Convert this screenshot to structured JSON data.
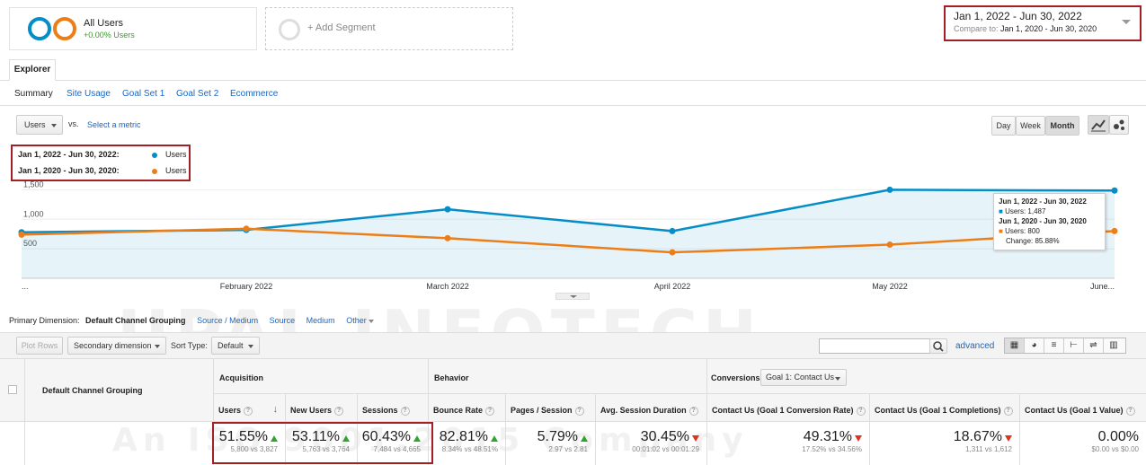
{
  "segments": {
    "all_users_label": "All Users",
    "all_users_change": "+0.00% Users",
    "add_segment_label": "+ Add Segment"
  },
  "date_range": {
    "primary": "Jan 1, 2022 - Jun 30, 2022",
    "compare_label": "Compare to:",
    "compare_range": "Jan 1, 2020 - Jun 30, 2020"
  },
  "tabs": {
    "explorer": "Explorer"
  },
  "subtabs": [
    "Summary",
    "Site Usage",
    "Goal Set 1",
    "Goal Set 2",
    "Ecommerce"
  ],
  "metric_controls": {
    "metric": "Users",
    "vs": "vs.",
    "select_metric": "Select a metric",
    "granularity": [
      "Day",
      "Week",
      "Month"
    ],
    "selected_granularity": "Month"
  },
  "legend": [
    {
      "range": "Jan 1, 2022 - Jun 30, 2022:",
      "metric": "Users",
      "color": "#058dc7"
    },
    {
      "range": "Jan 1, 2020 - Jun 30, 2020:",
      "metric": "Users",
      "color": "#ed7e17"
    }
  ],
  "chart_data": {
    "type": "line",
    "categories": [
      "...",
      "February 2022",
      "March 2022",
      "April 2022",
      "May 2022",
      "June..."
    ],
    "y_ticks": [
      "1,500",
      "1,000",
      "500"
    ],
    "ylim": [
      0,
      1750
    ],
    "grid": true,
    "series": [
      {
        "name": "Jan 1, 2022 - Jun 30, 2022",
        "values": [
          780,
          820,
          1170,
          800,
          1500,
          1487
        ],
        "color": "#058dc7"
      },
      {
        "name": "Jan 1, 2020 - Jun 30, 2020",
        "values": [
          740,
          840,
          680,
          440,
          570,
          800
        ],
        "color": "#ed7e17"
      }
    ],
    "tooltip": {
      "range1": "Jun 1, 2022 - Jun 30, 2022",
      "users1": "Users: 1,487",
      "range2": "Jun 1, 2020 - Jun 30, 2020",
      "users2": "Users: 800",
      "change": "Change: 85.88%"
    }
  },
  "dimension_bar": {
    "label": "Primary Dimension:",
    "selected": "Default Channel Grouping",
    "options": [
      "Source / Medium",
      "Source",
      "Medium",
      "Other"
    ]
  },
  "table_controls": {
    "plot_rows": "Plot Rows",
    "secondary_dimension": "Secondary dimension",
    "sort_type_label": "Sort Type:",
    "sort_type": "Default",
    "advanced": "advanced"
  },
  "table": {
    "dimension_header": "Default Channel Grouping",
    "groups": {
      "acquisition": "Acquisition",
      "behavior": "Behavior",
      "conversions": "Conversions",
      "goal_select": "Goal 1: Contact Us"
    },
    "columns": [
      {
        "header": "Users",
        "pct": "51.55%",
        "vs": "5,800 vs 3,827",
        "trend": "up"
      },
      {
        "header": "New Users",
        "pct": "53.11%",
        "vs": "5,763 vs 3,764",
        "trend": "up"
      },
      {
        "header": "Sessions",
        "pct": "60.43%",
        "vs": "7,484 vs 4,665",
        "trend": "up"
      },
      {
        "header": "Bounce Rate",
        "pct": "82.81%",
        "vs": "8.34% vs 48.51%",
        "trend": "up"
      },
      {
        "header": "Pages / Session",
        "pct": "5.79%",
        "vs": "2.97 vs 2.81",
        "trend": "up"
      },
      {
        "header": "Avg. Session Duration",
        "pct": "30.45%",
        "vs": "00:01:02 vs 00:01:29",
        "trend": "down"
      },
      {
        "header": "Contact Us (Goal 1 Conversion Rate)",
        "pct": "49.31%",
        "vs": "17.52% vs 34.56%",
        "trend": "down"
      },
      {
        "header": "Contact Us (Goal 1 Completions)",
        "pct": "18.67%",
        "vs": "1,311 vs 1,612",
        "trend": "down"
      },
      {
        "header": "Contact Us (Goal 1 Value)",
        "pct": "0.00%",
        "vs": "$0.00 vs $0.00",
        "trend": "none"
      }
    ]
  },
  "watermark": {
    "line1": "UPAL INFOTECH",
    "line2": "An ISO 9001:2015 Company"
  }
}
